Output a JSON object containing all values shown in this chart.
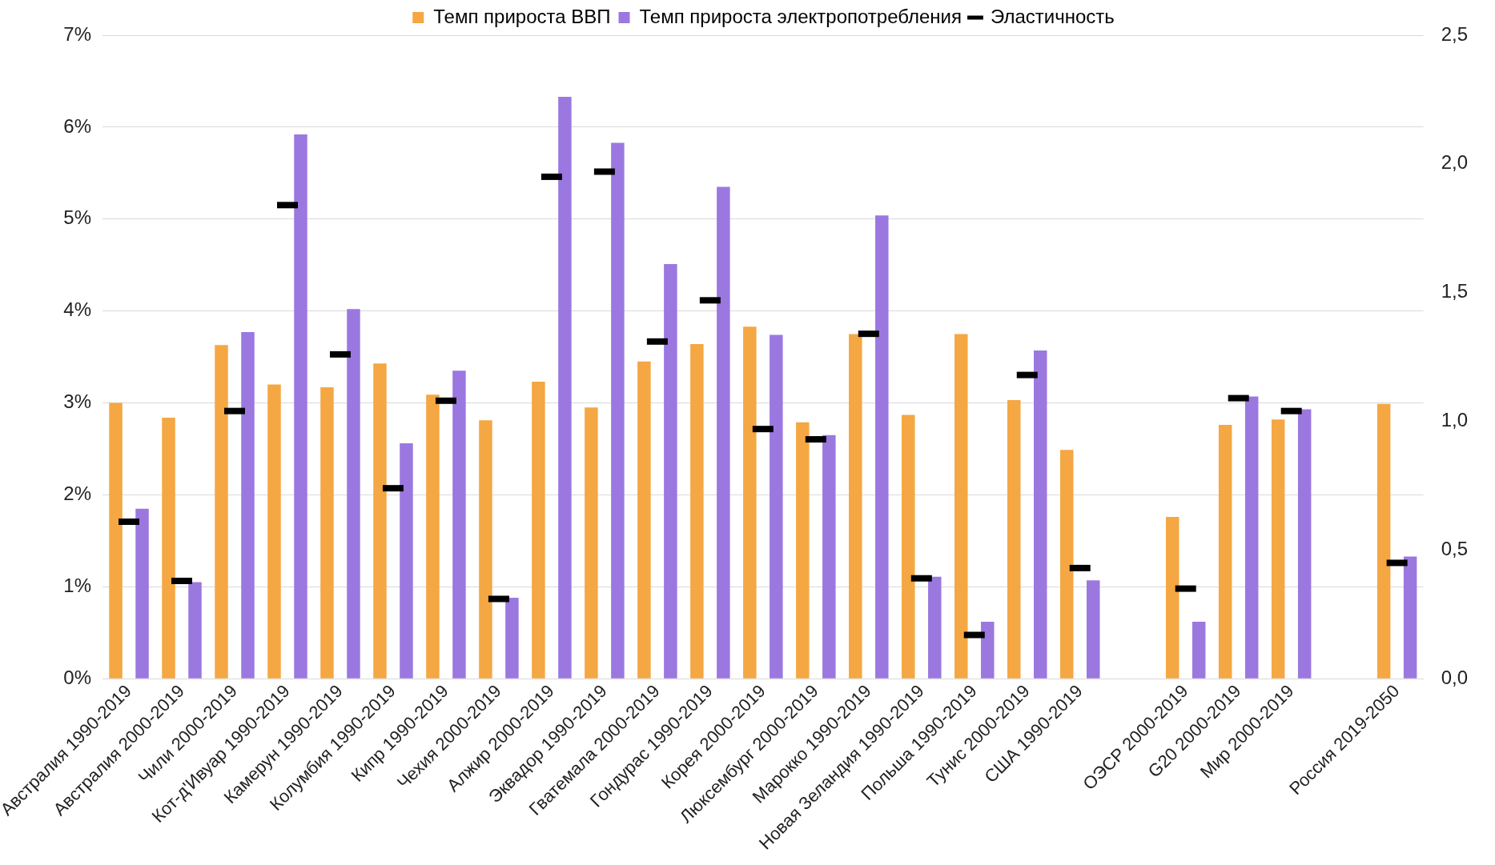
{
  "chart_data": {
    "type": "bar",
    "categories": [
      "Австралия 1990-2019",
      "Австралия 2000-2019",
      "Чили 2000-2019",
      "Кот-д'Ивуар 1990-2019",
      "Камерун 1990-2019",
      "Колумбия 1990-2019",
      "Кипр 1990-2019",
      "Чехия 2000-2019",
      "Алжир 2000-2019",
      "Эквадор 1990-2019",
      "Гватемала 2000-2019",
      "Гондурас 1990-2019",
      "Корея 2000-2019",
      "Люксембург 2000-2019",
      "Марокко 1990-2019",
      "Новая Зеландия 1990-2019",
      "Польша 1990-2019",
      "Тунис 2000-2019",
      "США 1990-2019",
      null,
      "ОЭСР 2000-2019",
      "G20 2000-2019",
      "Мир 2000-2019",
      null,
      "Россия 2019-2050"
    ],
    "series": [
      {
        "name": "Темп прироста ВВП",
        "color": "#f4a742",
        "values": [
          3.0,
          2.84,
          3.63,
          3.2,
          3.17,
          3.43,
          3.09,
          2.81,
          3.23,
          2.95,
          3.45,
          3.64,
          3.83,
          2.79,
          3.75,
          2.87,
          3.75,
          3.03,
          2.49,
          null,
          1.76,
          2.76,
          2.82,
          null,
          2.99
        ]
      },
      {
        "name": "Темп прироста электропотребления",
        "color": "#9b78e0",
        "values": [
          1.85,
          1.05,
          3.77,
          5.92,
          4.02,
          2.56,
          3.35,
          0.88,
          6.33,
          5.83,
          4.51,
          5.35,
          3.74,
          2.65,
          5.04,
          1.11,
          0.62,
          3.57,
          1.07,
          null,
          0.62,
          3.07,
          2.93,
          null,
          1.33
        ]
      },
      {
        "name": "Эластичность",
        "type": "scatter",
        "axis": "y2",
        "marker": "square",
        "color": "#000000",
        "values": [
          0.61,
          0.38,
          1.04,
          1.84,
          1.26,
          0.74,
          1.08,
          0.31,
          1.95,
          1.97,
          1.31,
          1.47,
          0.97,
          0.93,
          1.34,
          0.39,
          0.17,
          1.18,
          0.43,
          null,
          0.35,
          1.09,
          1.04,
          null,
          0.45
        ]
      }
    ],
    "ylim": [
      0,
      7
    ],
    "yticks": [
      {
        "value": 0,
        "label": "0%"
      },
      {
        "value": 1,
        "label": "1%"
      },
      {
        "value": 2,
        "label": "2%"
      },
      {
        "value": 3,
        "label": "3%"
      },
      {
        "value": 4,
        "label": "4%"
      },
      {
        "value": 5,
        "label": "5%"
      },
      {
        "value": 6,
        "label": "6%"
      },
      {
        "value": 7,
        "label": "7%"
      }
    ],
    "y2lim": [
      0,
      2.5
    ],
    "y2ticks": [
      {
        "value": 0,
        "label": "0,0"
      },
      {
        "value": 0.5,
        "label": "0,5"
      },
      {
        "value": 1,
        "label": "1,0"
      },
      {
        "value": 1.5,
        "label": "1,5"
      },
      {
        "value": 2,
        "label": "2,0"
      },
      {
        "value": 2.5,
        "label": "2,5"
      }
    ],
    "grid": "y",
    "legend": "top"
  }
}
